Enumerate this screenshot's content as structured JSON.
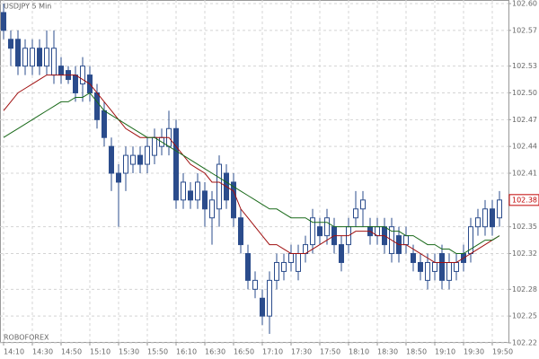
{
  "chart_data": {
    "type": "candlestick",
    "title": "USDJPY 5 Min",
    "watermark": "ROBOFOREX",
    "categories": [
      "14:10",
      null,
      null,
      null,
      "14:30",
      null,
      null,
      null,
      "14:50",
      null,
      null,
      null,
      "15:10",
      null,
      null,
      null,
      "15:30",
      null,
      null,
      null,
      "15:50",
      null,
      null,
      null,
      "16:10",
      null,
      null,
      null,
      "16:30",
      null,
      null,
      null,
      "16:50",
      null,
      null,
      null,
      "17:10",
      null,
      null,
      null,
      "17:30",
      null,
      null,
      null,
      "17:50",
      null,
      null,
      null,
      "18:10",
      null,
      null,
      null,
      "18:30",
      null,
      null,
      null,
      "18:50",
      null,
      null,
      null,
      "19:10",
      null,
      null,
      null,
      "19:30",
      null,
      null,
      null,
      "19:50",
      null
    ],
    "open": [
      102.59,
      102.56,
      102.56,
      102.53,
      102.53,
      102.55,
      102.53,
      102.52,
      102.53,
      102.525,
      102.52,
      102.51,
      102.52,
      102.5,
      102.48,
      102.44,
      102.41,
      102.41,
      102.42,
      102.43,
      102.42,
      102.43,
      102.44,
      102.44,
      102.46,
      102.38,
      102.39,
      102.38,
      102.39,
      102.36,
      102.37,
      102.41,
      102.4,
      102.36,
      102.32,
      102.28,
      102.27,
      102.25,
      102.29,
      102.3,
      102.31,
      102.3,
      102.32,
      102.33,
      102.35,
      102.34,
      102.35,
      102.33,
      102.33,
      102.36,
      102.37,
      102.35,
      102.34,
      102.35,
      102.32,
      102.34,
      102.33,
      102.32,
      102.31,
      102.29,
      102.3,
      102.32,
      102.29,
      102.3,
      102.32,
      102.32,
      102.35,
      102.35,
      102.37,
      102.36
    ],
    "high": [
      102.6,
      102.57,
      102.57,
      102.56,
      102.56,
      102.56,
      102.57,
      102.57,
      102.54,
      102.53,
      102.53,
      102.54,
      102.53,
      102.51,
      102.49,
      102.45,
      102.42,
      102.44,
      102.44,
      102.44,
      102.45,
      102.46,
      102.46,
      102.48,
      102.47,
      102.41,
      102.4,
      102.41,
      102.4,
      102.39,
      102.43,
      102.42,
      102.41,
      102.37,
      102.33,
      102.3,
      102.28,
      102.3,
      102.32,
      102.32,
      102.33,
      102.33,
      102.34,
      102.37,
      102.36,
      102.37,
      102.36,
      102.34,
      102.36,
      102.39,
      102.39,
      102.36,
      102.36,
      102.36,
      102.36,
      102.35,
      102.35,
      102.33,
      102.32,
      102.32,
      102.32,
      102.33,
      102.32,
      102.32,
      102.33,
      102.36,
      102.37,
      102.38,
      102.38,
      102.39
    ],
    "low": [
      102.56,
      102.53,
      102.52,
      102.52,
      102.52,
      102.52,
      102.52,
      102.51,
      102.51,
      102.51,
      102.49,
      102.49,
      102.49,
      102.46,
      102.44,
      102.39,
      102.35,
      102.39,
      102.41,
      102.41,
      102.41,
      102.42,
      102.43,
      102.43,
      102.37,
      102.37,
      102.37,
      102.37,
      102.35,
      102.33,
      102.35,
      102.37,
      102.35,
      102.32,
      102.28,
      102.27,
      102.24,
      102.23,
      102.28,
      102.29,
      102.3,
      102.29,
      102.31,
      102.32,
      102.33,
      102.33,
      102.32,
      102.3,
      102.32,
      102.35,
      102.35,
      102.33,
      102.33,
      102.32,
      102.31,
      102.31,
      102.32,
      102.3,
      102.29,
      102.28,
      102.29,
      102.28,
      102.28,
      102.29,
      102.3,
      102.31,
      102.34,
      102.34,
      102.34,
      102.35
    ],
    "close": [
      102.57,
      102.55,
      102.53,
      102.55,
      102.55,
      102.53,
      102.55,
      102.55,
      102.52,
      102.515,
      102.5,
      102.53,
      102.5,
      102.47,
      102.45,
      102.41,
      102.4,
      102.43,
      102.43,
      102.42,
      102.44,
      102.45,
      102.45,
      102.46,
      102.38,
      102.4,
      102.38,
      102.4,
      102.37,
      102.38,
      102.42,
      102.38,
      102.36,
      102.33,
      102.29,
      102.29,
      102.25,
      102.29,
      102.31,
      102.31,
      102.32,
      102.32,
      102.33,
      102.36,
      102.34,
      102.36,
      102.33,
      102.31,
      102.35,
      102.37,
      102.38,
      102.34,
      102.35,
      102.33,
      102.35,
      102.32,
      102.34,
      102.31,
      102.3,
      102.31,
      102.31,
      102.29,
      102.31,
      102.31,
      102.31,
      102.35,
      102.36,
      102.37,
      102.35,
      102.38
    ],
    "bull_color": "#ffffff",
    "bear_color": "#2b4c8c",
    "lines": [
      {
        "color": "#a01010",
        "values": [
          102.48,
          102.49,
          102.5,
          102.505,
          102.51,
          102.515,
          102.52,
          102.52,
          102.52,
          102.52,
          102.52,
          102.515,
          102.51,
          102.5,
          102.49,
          102.48,
          102.47,
          102.46,
          102.455,
          102.45,
          102.45,
          102.45,
          102.45,
          102.45,
          102.44,
          102.43,
          102.42,
          102.415,
          102.41,
          102.4,
          102.4,
          102.395,
          102.39,
          102.37,
          102.36,
          102.35,
          102.34,
          102.33,
          102.33,
          102.325,
          102.32,
          102.32,
          102.32,
          102.325,
          102.33,
          102.335,
          102.34,
          102.34,
          102.34,
          102.345,
          102.345,
          102.345,
          102.34,
          102.34,
          102.335,
          102.33,
          102.33,
          102.325,
          102.32,
          102.315,
          102.31,
          102.31,
          102.31,
          102.31,
          102.315,
          102.32,
          102.325,
          102.33,
          102.335,
          102.34
        ]
      },
      {
        "color": "#1a6a1a",
        "values": [
          102.45,
          102.455,
          102.46,
          102.465,
          102.47,
          102.475,
          102.48,
          102.485,
          102.49,
          102.49,
          102.495,
          102.495,
          102.5,
          102.49,
          102.48,
          102.475,
          102.47,
          102.465,
          102.46,
          102.455,
          102.45,
          102.45,
          102.445,
          102.44,
          102.435,
          102.43,
          102.425,
          102.42,
          102.415,
          102.41,
          102.405,
          102.4,
          102.395,
          102.39,
          102.385,
          102.38,
          102.375,
          102.37,
          102.37,
          102.365,
          102.36,
          102.36,
          102.36,
          102.355,
          102.355,
          102.355,
          102.35,
          102.35,
          102.35,
          102.35,
          102.35,
          102.35,
          102.35,
          102.35,
          102.345,
          102.345,
          102.34,
          102.34,
          102.335,
          102.33,
          102.33,
          102.325,
          102.325,
          102.32,
          102.32,
          102.325,
          102.33,
          102.335,
          102.335,
          102.34
        ]
      }
    ],
    "ylim": [
      102.22,
      102.6
    ],
    "yticks": [
      {
        "value": 102.6,
        "label": "102.60"
      },
      102.57,
      102.53,
      {
        "value": 102.5,
        "label": "102.50"
      },
      102.47,
      102.44,
      102.41,
      102.35,
      102.32,
      102.28,
      102.25,
      102.22
    ],
    "grid": true
  }
}
